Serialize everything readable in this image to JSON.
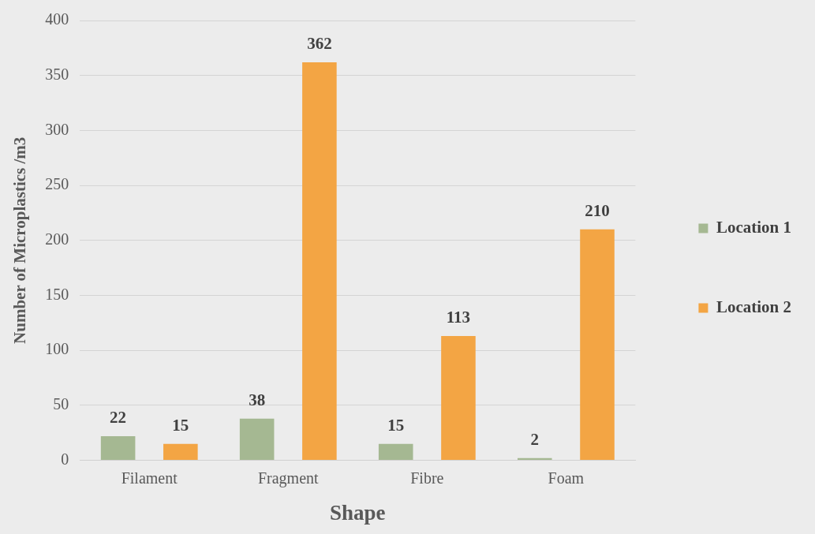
{
  "chart_data": {
    "type": "bar",
    "xlabel": "Shape",
    "ylabel": "Number of Microplastics /m3",
    "categories": [
      "Filament",
      "Fragment",
      "Fibre",
      "Foam"
    ],
    "series": [
      {
        "name": "Location 1",
        "color": "#a5b892",
        "values": [
          22,
          38,
          15,
          2
        ]
      },
      {
        "name": "Location 2",
        "color": "#f3a544",
        "values": [
          15,
          362,
          113,
          210
        ]
      }
    ],
    "ylim": [
      0,
      400
    ],
    "yticks": [
      0,
      50,
      100,
      150,
      200,
      250,
      300,
      350,
      400
    ],
    "grid": "y",
    "legend": "right",
    "data_labels": true
  }
}
